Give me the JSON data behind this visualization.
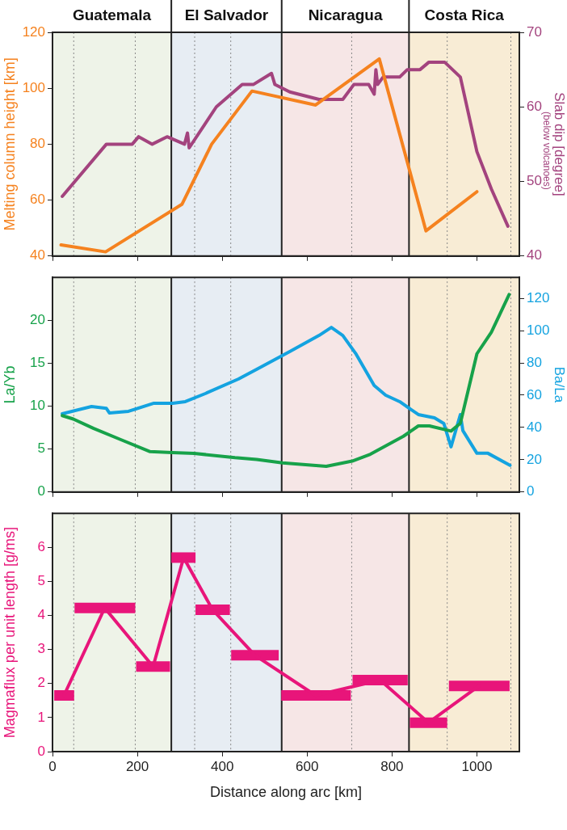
{
  "chart_data": [
    {
      "type": "line",
      "ylabel": "Melting column height [km]",
      "y2label": "Slab dip [degree]",
      "annotations": [
        "(below volcanoes)"
      ],
      "xlim": [
        0,
        1100
      ],
      "xticks": [
        0,
        200,
        400,
        600,
        800,
        1000
      ],
      "ylim": [
        40,
        120
      ],
      "yticks": [
        40,
        60,
        80,
        100,
        120
      ],
      "y2lim": [
        40,
        70
      ],
      "y2ticks": [
        40,
        50,
        60,
        70
      ],
      "tick_labels": "y",
      "legend": false,
      "marker": "none",
      "line_style": "solid",
      "bands": [
        {
          "axis": "x",
          "from": 0,
          "to": 280,
          "label": "Guatemala",
          "color": "#eef3e8"
        },
        {
          "axis": "x",
          "from": 280,
          "to": 540,
          "label": "El Salvador",
          "color": "#e7edf3"
        },
        {
          "axis": "x",
          "from": 540,
          "to": 840,
          "label": "Nicaragua",
          "color": "#f6e6e6"
        },
        {
          "axis": "x",
          "from": 840,
          "to": 1100,
          "label": "Costa Rica",
          "color": "#f8ecd5"
        }
      ],
      "ref_lines": [
        {
          "axis": "x",
          "value": 50,
          "line_style": "dotted"
        },
        {
          "axis": "x",
          "value": 195,
          "line_style": "dotted"
        },
        {
          "axis": "x",
          "value": 335,
          "line_style": "dotted"
        },
        {
          "axis": "x",
          "value": 420,
          "line_style": "dotted"
        },
        {
          "axis": "x",
          "value": 705,
          "line_style": "dotted"
        },
        {
          "axis": "x",
          "value": 930,
          "line_style": "dotted"
        },
        {
          "axis": "x",
          "value": 1080,
          "line_style": "dotted"
        }
      ],
      "series": [
        {
          "color": "#f5821f",
          "x": [
            20,
            125,
            305,
            375,
            470,
            620,
            770,
            880,
            1000
          ],
          "values": [
            44,
            41.5,
            58.5,
            80,
            99,
            94,
            110.5,
            49,
            63
          ]
        },
        {
          "color": "#a3437e",
          "axis": "y2",
          "x": [
            23,
            127,
            188,
            203,
            235,
            270,
            311,
            318,
            322,
            386,
            447,
            473,
            516,
            524,
            559,
            628,
            684,
            710,
            745,
            758,
            762,
            766,
            779,
            818,
            836,
            866,
            887,
            924,
            961,
            1000,
            1034,
            1073
          ],
          "values": [
            48,
            55,
            55,
            56,
            55,
            56,
            55,
            56.5,
            54.5,
            60,
            63,
            63,
            64.5,
            63,
            62,
            61,
            61,
            63,
            63,
            61.7,
            65,
            63,
            64,
            64,
            65,
            65,
            66,
            66,
            64,
            54,
            49,
            44
          ]
        }
      ]
    },
    {
      "type": "line",
      "ylabel": "La/Yb",
      "y2label": "Ba/La",
      "xlim": [
        0,
        1100
      ],
      "xticks": [
        0,
        200,
        400,
        600,
        800,
        1000
      ],
      "ylim": [
        0,
        25
      ],
      "yticks": [
        0,
        5,
        10,
        15,
        20
      ],
      "y2lim": [
        0,
        133
      ],
      "y2ticks": [
        0,
        20,
        40,
        60,
        80,
        100,
        120
      ],
      "tick_labels": "y",
      "legend": false,
      "marker": "none",
      "line_style": "solid",
      "bands": [
        {
          "axis": "x",
          "from": 0,
          "to": 280,
          "color": "#eef3e8"
        },
        {
          "axis": "x",
          "from": 280,
          "to": 540,
          "color": "#e7edf3"
        },
        {
          "axis": "x",
          "from": 540,
          "to": 840,
          "color": "#f6e6e6"
        },
        {
          "axis": "x",
          "from": 840,
          "to": 1100,
          "color": "#f8ecd5"
        }
      ],
      "ref_lines": [
        {
          "axis": "x",
          "value": 50,
          "line_style": "dotted"
        },
        {
          "axis": "x",
          "value": 195,
          "line_style": "dotted"
        },
        {
          "axis": "x",
          "value": 335,
          "line_style": "dotted"
        },
        {
          "axis": "x",
          "value": 420,
          "line_style": "dotted"
        },
        {
          "axis": "x",
          "value": 705,
          "line_style": "dotted"
        },
        {
          "axis": "x",
          "value": 930,
          "line_style": "dotted"
        },
        {
          "axis": "x",
          "value": 1080,
          "line_style": "dotted"
        }
      ],
      "series": [
        {
          "color": "#17a24a",
          "x": [
            23,
            49,
            97,
            161,
            230,
            282,
            334,
            430,
            481,
            542,
            645,
            706,
            749,
            827,
            862,
            888,
            939,
            961,
            1000,
            1034,
            1076
          ],
          "values": [
            8.9,
            8.5,
            7.4,
            6.1,
            4.7,
            4.6,
            4.5,
            4,
            3.8,
            3.4,
            3,
            3.6,
            4.4,
            6.5,
            7.7,
            7.7,
            7.1,
            8,
            16.1,
            18.6,
            23
          ]
        },
        {
          "color": "#14a3e0",
          "axis": "y2",
          "x": [
            23,
            92,
            127,
            134,
            179,
            239,
            283,
            313,
            360,
            438,
            481,
            559,
            628,
            657,
            684,
            714,
            758,
            785,
            818,
            862,
            900,
            922,
            939,
            961,
            967,
            1000,
            1026,
            1078
          ],
          "values": [
            48.5,
            53,
            51.8,
            49,
            50,
            55,
            55,
            56,
            61,
            70,
            76,
            87,
            97,
            102,
            97,
            86,
            66,
            60,
            56,
            48,
            46,
            42.5,
            28,
            48,
            38,
            24,
            24,
            16.5
          ]
        }
      ]
    },
    {
      "type": "line",
      "xlabel": "Distance along arc [km]",
      "ylabel": "Magmaflux per unit length [g/ms]",
      "xlim": [
        0,
        1100
      ],
      "xticks": [
        0,
        200,
        400,
        600,
        800,
        1000
      ],
      "ylim": [
        0,
        7
      ],
      "yticks": [
        0,
        1,
        2,
        3,
        4,
        5,
        6
      ],
      "legend": false,
      "marker": "none",
      "line_style": "solid",
      "bands": [
        {
          "axis": "x",
          "from": 0,
          "to": 280,
          "color": "#eef3e8"
        },
        {
          "axis": "x",
          "from": 280,
          "to": 540,
          "color": "#e7edf3"
        },
        {
          "axis": "x",
          "from": 540,
          "to": 840,
          "color": "#f6e6e6"
        },
        {
          "axis": "x",
          "from": 840,
          "to": 1100,
          "color": "#f8ecd5"
        }
      ],
      "ref_lines": [
        {
          "axis": "x",
          "value": 50,
          "line_style": "dotted"
        },
        {
          "axis": "x",
          "value": 195,
          "line_style": "dotted"
        },
        {
          "axis": "x",
          "value": 335,
          "line_style": "dotted"
        },
        {
          "axis": "x",
          "value": 420,
          "line_style": "dotted"
        },
        {
          "axis": "x",
          "value": 705,
          "line_style": "dotted"
        },
        {
          "axis": "x",
          "value": 930,
          "line_style": "dotted"
        },
        {
          "axis": "x",
          "value": 1080,
          "line_style": "dotted"
        }
      ],
      "series": [
        {
          "color": "#e8157a",
          "x": [
            27,
            123,
            237,
            309,
            377,
            477,
            620,
            772,
            886,
            1005
          ],
          "values": [
            1.65,
            4.22,
            2.5,
            5.7,
            4.17,
            2.83,
            1.65,
            2.1,
            0.85,
            1.93
          ],
          "xerrors": [
            [
              4,
              51
            ],
            [
              52,
              195
            ],
            [
              197,
              277
            ],
            [
              280,
              337
            ],
            [
              337,
              418
            ],
            [
              421,
              533
            ],
            [
              539,
              703
            ],
            [
              707,
              837
            ],
            [
              842,
              930
            ],
            [
              934,
              1077
            ]
          ]
        }
      ]
    }
  ]
}
